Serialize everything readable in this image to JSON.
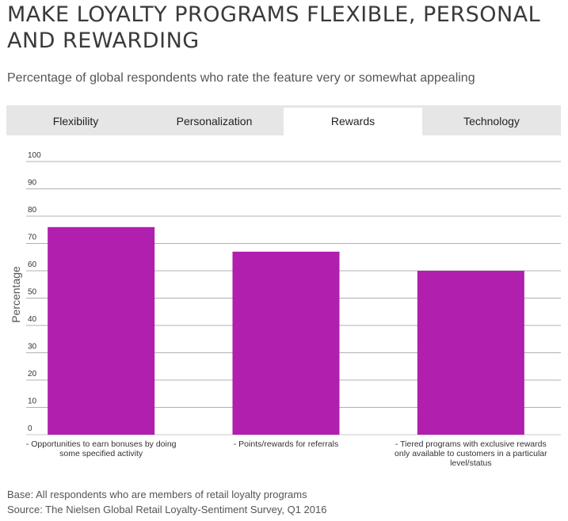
{
  "title": "MAKE LOYALTY PROGRAMS FLEXIBLE, PERSONAL AND REWARDING",
  "subtitle": "Percentage of global respondents who rate the feature very or somewhat appealing",
  "tabs": [
    {
      "label": "Flexibility",
      "active": false
    },
    {
      "label": "Personalization",
      "active": false
    },
    {
      "label": "Rewards",
      "active": true
    },
    {
      "label": "Technology",
      "active": false
    }
  ],
  "colors": {
    "bar": "#b01fae",
    "grid": "#b0b0b0",
    "tabs_bg": "#e6e6e6"
  },
  "chart_data": {
    "type": "bar",
    "title": "",
    "xlabel": "",
    "ylabel": "Percentage",
    "ylim": [
      0,
      100
    ],
    "yticks": [
      0,
      10,
      20,
      30,
      40,
      50,
      60,
      70,
      80,
      90,
      100
    ],
    "categories": [
      "- Opportunities to earn bonuses by doing some specified activity",
      "- Points/rewards for referrals",
      "- Tiered programs with exclusive rewards only available to customers in a particular level/status"
    ],
    "category_lines": [
      [
        "- Opportunities to earn bonuses by doing",
        "some specified activity"
      ],
      [
        "- Points/rewards for referrals"
      ],
      [
        "- Tiered programs with exclusive rewards",
        "only available to customers in a particular",
        "level/status"
      ]
    ],
    "values": [
      76,
      67,
      60
    ]
  },
  "footer": {
    "base": "Base: All respondents who are members of retail loyalty programs",
    "source": "Source: The Nielsen Global Retail Loyalty-Sentiment Survey, Q1 2016"
  }
}
